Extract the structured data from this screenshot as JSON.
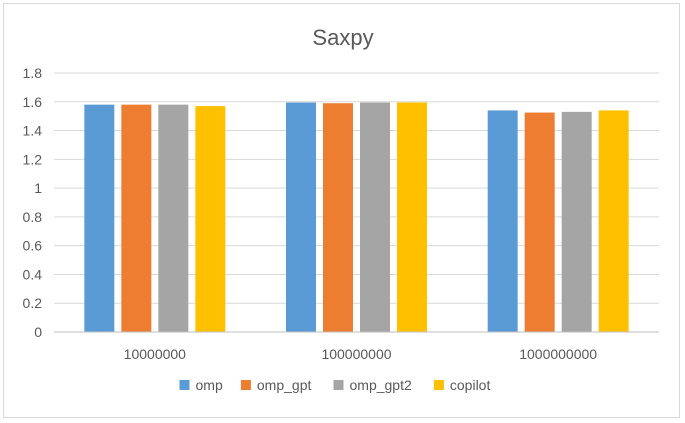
{
  "chart_data": {
    "type": "bar",
    "title": "Saxpy",
    "xlabel": "",
    "ylabel": "",
    "categories": [
      "10000000",
      "100000000",
      "1000000000"
    ],
    "series": [
      {
        "name": "omp",
        "color": "#5b9bd5",
        "values": [
          1.58,
          1.595,
          1.54
        ]
      },
      {
        "name": "omp_gpt",
        "color": "#ed7d31",
        "values": [
          1.58,
          1.59,
          1.525
        ]
      },
      {
        "name": "omp_gpt2",
        "color": "#a5a5a5",
        "values": [
          1.58,
          1.595,
          1.53
        ]
      },
      {
        "name": "copilot",
        "color": "#ffc000",
        "values": [
          1.57,
          1.595,
          1.54
        ]
      }
    ],
    "ylim": [
      0,
      1.8
    ],
    "yticks": [
      "0",
      "0.2",
      "0.4",
      "0.6",
      "0.8",
      "1",
      "1.2",
      "1.4",
      "1.6",
      "1.8"
    ],
    "grid": true,
    "legend_position": "bottom"
  }
}
